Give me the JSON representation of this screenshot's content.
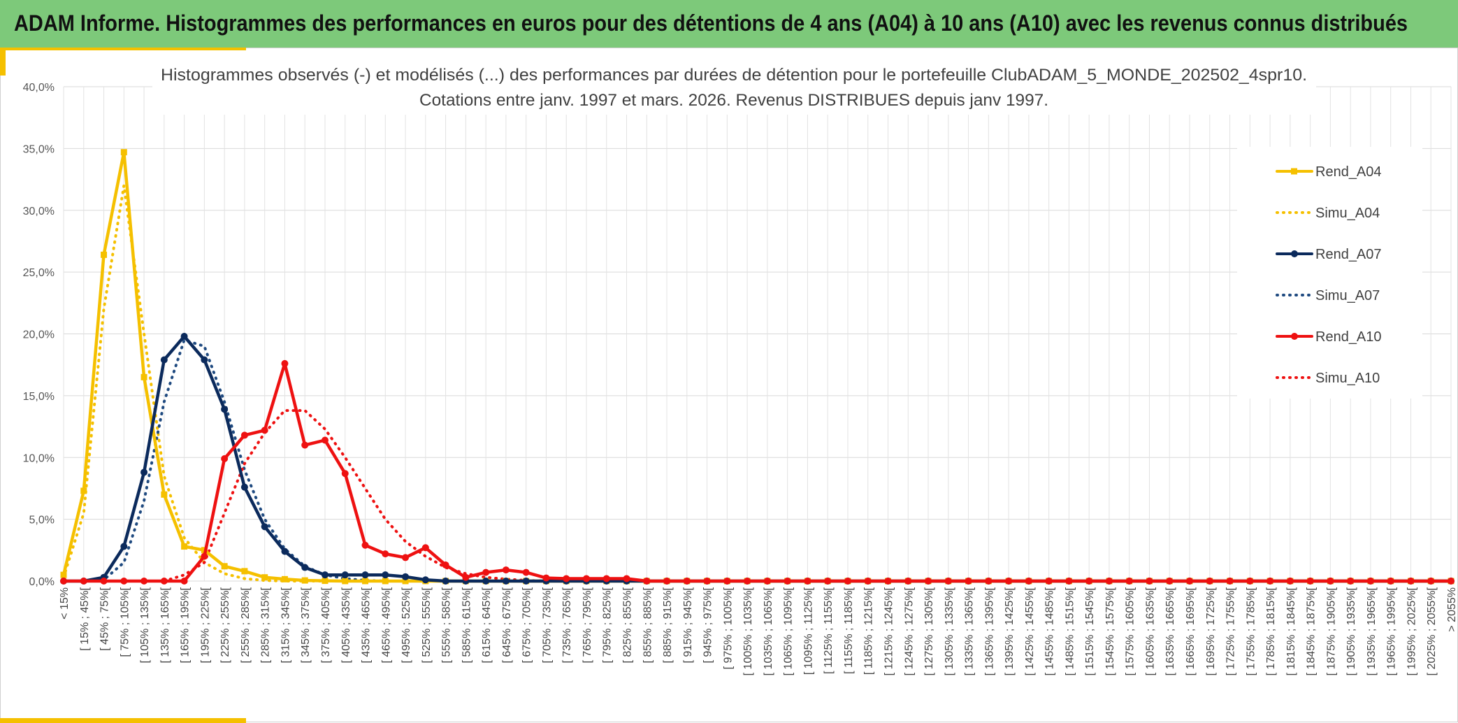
{
  "header": {
    "title": "ADAM Informe. Histogrammes des performances en euros pour des détentions de 4 ans (A04) à 10 ans (A10) avec les revenus connus distribués"
  },
  "colors": {
    "banner": "#7dc97a",
    "accent": "#f5c000",
    "a04": "#f5c000",
    "a07": "#0b2a5c",
    "a10": "#ee1111"
  },
  "chart_data": {
    "type": "line",
    "title_line1": "Histogrammes observés (-) et modélisés (...) des performances par durées de détention pour le portefeuille ClubADAM_5_MONDE_202502_4spr10.",
    "title_line2": "Cotations entre janv. 1997 et mars. 2026. Revenus DISTRIBUES depuis janv 1997.",
    "y_tick_labels": [
      "0,0%",
      "5,0%",
      "10,0%",
      "15,0%",
      "20,0%",
      "25,0%",
      "30,0%",
      "35,0%",
      "40,0%"
    ],
    "ylim": [
      0,
      40
    ],
    "grid": true,
    "legend_position": "right",
    "categories": [
      "< 15%",
      "[ 15% ; 45%[",
      "[ 45% ; 75%[",
      "[ 75% ; 105%[",
      "[ 105% ; 135%[",
      "[ 135% ; 165%[",
      "[ 165% ; 195%[",
      "[ 195% ; 225%[",
      "[ 225% ; 255%[",
      "[ 255% ; 285%[",
      "[ 285% ; 315%[",
      "[ 315% ; 345%[",
      "[ 345% ; 375%[",
      "[ 375% ; 405%[",
      "[ 405% ; 435%[",
      "[ 435% ; 465%[",
      "[ 465% ; 495%[",
      "[ 495% ; 525%[",
      "[ 525% ; 555%[",
      "[ 555% ; 585%[",
      "[ 585% ; 615%[",
      "[ 615% ; 645%[",
      "[ 645% ; 675%[",
      "[ 675% ; 705%[",
      "[ 705% ; 735%[",
      "[ 735% ; 765%[",
      "[ 765% ; 795%[",
      "[ 795% ; 825%[",
      "[ 825% ; 855%[",
      "[ 855% ; 885%[",
      "[ 885% ; 915%[",
      "[ 915% ; 945%[",
      "[ 945% ; 975%[",
      "[ 975% ; 1005%[",
      "[ 1005% ; 1035%[",
      "[ 1035% ; 1065%[",
      "[ 1065% ; 1095%[",
      "[ 1095% ; 1125%[",
      "[ 1125% ; 1155%[",
      "[ 1155% ; 1185%[",
      "[ 1185% ; 1215%[",
      "[ 1215% ; 1245%[",
      "[ 1245% ; 1275%[",
      "[ 1275% ; 1305%[",
      "[ 1305% ; 1335%[",
      "[ 1335% ; 1365%[",
      "[ 1365% ; 1395%[",
      "[ 1395% ; 1425%[",
      "[ 1425% ; 1455%[",
      "[ 1455% ; 1485%[",
      "[ 1485% ; 1515%[",
      "[ 1515% ; 1545%[",
      "[ 1545% ; 1575%[",
      "[ 1575% ; 1605%[",
      "[ 1605% ; 1635%[",
      "[ 1635% ; 1665%[",
      "[ 1665% ; 1695%[",
      "[ 1695% ; 1725%[",
      "[ 1725% ; 1755%[",
      "[ 1755% ; 1785%[",
      "[ 1785% ; 1815%[",
      "[ 1815% ; 1845%[",
      "[ 1845% ; 1875%[",
      "[ 1875% ; 1905%[",
      "[ 1905% ; 1935%[",
      "[ 1935% ; 1965%[",
      "[ 1965% ; 1995%[",
      "[ 1995% ; 2025%[",
      "[ 2025% ; 2055%[",
      "> 2055%"
    ],
    "series": [
      {
        "name": "Rend_A04",
        "style": "solid",
        "marker": "square",
        "color": "#f5c000",
        "values": [
          0.5,
          7.3,
          26.4,
          34.7,
          16.5,
          7.0,
          2.8,
          2.5,
          1.2,
          0.8,
          0.3,
          0.15,
          0.05,
          0.02,
          0,
          0,
          0,
          0,
          0,
          0,
          0,
          0,
          0,
          0,
          0,
          0,
          0,
          0,
          0,
          0,
          0,
          0,
          0,
          0,
          0,
          0,
          0,
          0,
          0,
          0,
          0,
          0,
          0,
          0,
          0,
          0,
          0,
          0,
          0,
          0,
          0,
          0,
          0,
          0,
          0,
          0,
          0,
          0,
          0,
          0,
          0,
          0,
          0,
          0,
          0,
          0,
          0,
          0,
          0,
          0
        ]
      },
      {
        "name": "Simu_A04",
        "style": "dotted",
        "color": "#f5c000",
        "values": [
          0.3,
          5.5,
          22.0,
          32.0,
          20.0,
          8.5,
          3.5,
          1.5,
          0.6,
          0.2,
          0.05,
          0,
          0,
          0,
          0,
          0,
          0,
          0,
          0,
          0,
          0,
          0,
          0,
          0,
          0,
          0,
          0,
          0,
          0,
          0,
          0,
          0,
          0,
          0,
          0,
          0,
          0,
          0,
          0,
          0,
          0,
          0,
          0,
          0,
          0,
          0,
          0,
          0,
          0,
          0,
          0,
          0,
          0,
          0,
          0,
          0,
          0,
          0,
          0,
          0,
          0,
          0,
          0,
          0,
          0,
          0,
          0,
          0,
          0,
          0
        ]
      },
      {
        "name": "Rend_A07",
        "style": "solid",
        "marker": "circle",
        "color": "#0b2a5c",
        "values": [
          0,
          0,
          0.3,
          2.8,
          8.8,
          17.9,
          19.8,
          17.9,
          13.9,
          7.6,
          4.4,
          2.4,
          1.1,
          0.5,
          0.5,
          0.5,
          0.5,
          0.35,
          0.1,
          0,
          0,
          0,
          0,
          0,
          0,
          0,
          0,
          0,
          0,
          0,
          0,
          0,
          0,
          0,
          0,
          0,
          0,
          0,
          0,
          0,
          0,
          0,
          0,
          0,
          0,
          0,
          0,
          0,
          0,
          0,
          0,
          0,
          0,
          0,
          0,
          0,
          0,
          0,
          0,
          0,
          0,
          0,
          0,
          0,
          0,
          0,
          0,
          0,
          0,
          0
        ]
      },
      {
        "name": "Simu_A07",
        "style": "dotted",
        "color": "#1f4a80",
        "values": [
          0,
          0,
          0.1,
          1.5,
          6.5,
          14.5,
          19.5,
          19.0,
          14.5,
          9.0,
          5.0,
          2.6,
          1.2,
          0.5,
          0.2,
          0.05,
          0,
          0,
          0,
          0,
          0,
          0,
          0,
          0,
          0,
          0,
          0,
          0,
          0,
          0,
          0,
          0,
          0,
          0,
          0,
          0,
          0,
          0,
          0,
          0,
          0,
          0,
          0,
          0,
          0,
          0,
          0,
          0,
          0,
          0,
          0,
          0,
          0,
          0,
          0,
          0,
          0,
          0,
          0,
          0,
          0,
          0,
          0,
          0,
          0,
          0,
          0,
          0,
          0,
          0
        ]
      },
      {
        "name": "Rend_A10",
        "style": "solid",
        "marker": "circle",
        "color": "#ee1111",
        "values": [
          0,
          0,
          0,
          0,
          0,
          0,
          0,
          2.0,
          9.9,
          11.8,
          12.2,
          17.6,
          11.0,
          11.4,
          8.7,
          2.9,
          2.2,
          1.9,
          2.7,
          1.3,
          0.3,
          0.7,
          0.9,
          0.7,
          0.25,
          0.2,
          0.2,
          0.2,
          0.2,
          0,
          0,
          0,
          0,
          0,
          0,
          0,
          0,
          0,
          0,
          0,
          0,
          0,
          0,
          0,
          0,
          0,
          0,
          0,
          0,
          0,
          0,
          0,
          0,
          0,
          0,
          0,
          0,
          0,
          0,
          0,
          0,
          0,
          0,
          0,
          0,
          0,
          0,
          0,
          0,
          0
        ]
      },
      {
        "name": "Simu_A10",
        "style": "dotted",
        "color": "#ee1111",
        "values": [
          0,
          0,
          0,
          0,
          0,
          0,
          0.5,
          1.5,
          5.5,
          9.5,
          12.0,
          13.8,
          13.8,
          12.3,
          10.0,
          7.5,
          5.0,
          3.2,
          2.0,
          1.1,
          0.6,
          0.3,
          0.15,
          0.05,
          0,
          0,
          0,
          0,
          0,
          0,
          0,
          0,
          0,
          0,
          0,
          0,
          0,
          0,
          0,
          0,
          0,
          0,
          0,
          0,
          0,
          0,
          0,
          0,
          0,
          0,
          0,
          0,
          0,
          0,
          0,
          0,
          0,
          0,
          0,
          0,
          0,
          0,
          0,
          0,
          0,
          0,
          0,
          0,
          0,
          0
        ]
      }
    ]
  }
}
